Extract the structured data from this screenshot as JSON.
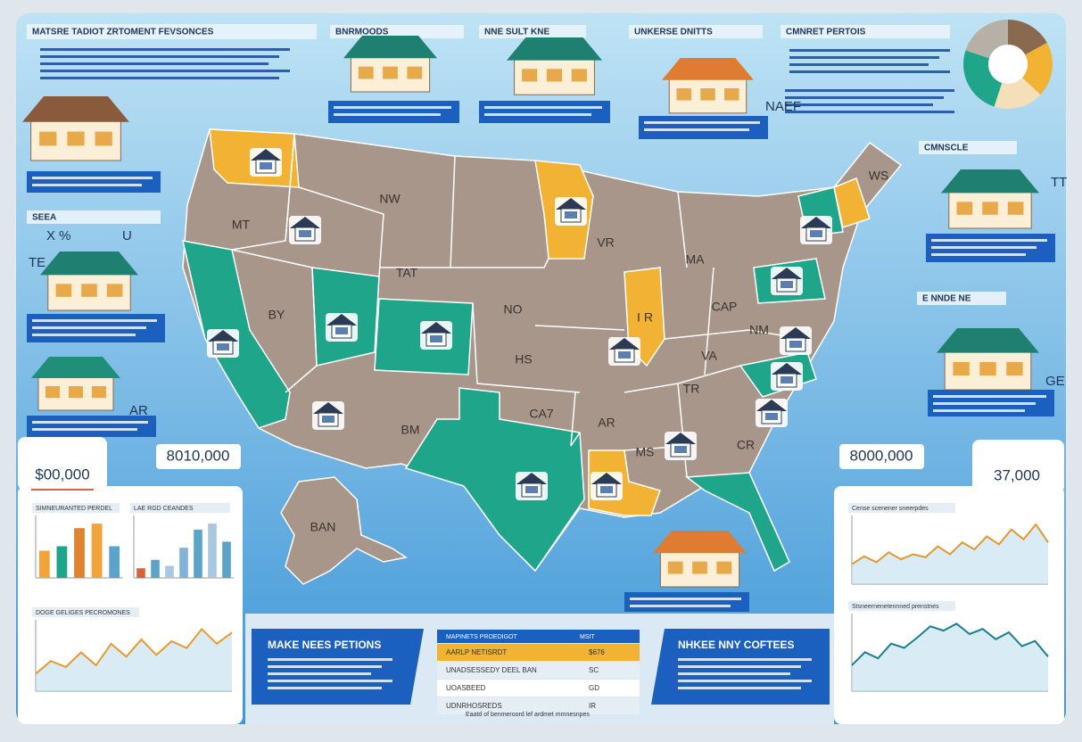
{
  "header": {
    "title": "MATSRE TADIOT ZRTOMENT FEVSONCES"
  },
  "cards": [
    {
      "title": "BNRMOODS"
    },
    {
      "title": "NNE SULT KNE"
    },
    {
      "title": "UNKERSE DNITTS"
    },
    {
      "title": "CMNRET PERTOIS"
    },
    {
      "title": "SEEA"
    },
    {
      "title": "CMNSCLE"
    },
    {
      "title": "E NNDE NE"
    }
  ],
  "side_labels": [
    "X %",
    "U",
    "TE",
    "AR",
    "NAEF",
    "TT",
    "GE"
  ],
  "map_labels": [
    "MT",
    "NW",
    "TAT",
    "BY",
    "NO",
    "HS",
    "CA7",
    "BM",
    "AR",
    "MS",
    "VR",
    "MA",
    "CAP",
    "NM",
    "VA",
    "TR",
    "CR",
    "WS",
    "I R",
    "BAN"
  ],
  "stats": [
    "$00,000",
    "8010,000",
    "8000,000",
    "37,000"
  ],
  "donut": {
    "values": [
      17,
      20,
      18,
      25,
      20
    ],
    "colors": [
      "#8a6a4f",
      "#f2b233",
      "#f4dfb8",
      "#1fa58a",
      "#b7b0a6"
    ]
  },
  "mini_charts": [
    {
      "type": "bar",
      "title": "SIMNEURANTED PERDEL",
      "values": [
        30,
        35,
        55,
        60,
        35
      ],
      "colors": [
        "#f2a33a",
        "#1fa58a",
        "#e0822f",
        "#f2a33a",
        "#5ba3c9"
      ]
    },
    {
      "type": "bar",
      "title": "LAE RGD CEANDES",
      "values": [
        8,
        15,
        10,
        25,
        40,
        45,
        30
      ],
      "colors": [
        "#d9623b",
        "#5ba3c9",
        "#a8c8e0",
        "#7fb2d6",
        "#5ba3c9",
        "#a8c8e0",
        "#5ba3c9"
      ]
    },
    {
      "type": "line",
      "title": "DOGE GELIGES PECROMONES",
      "values": [
        20,
        35,
        28,
        45,
        30,
        55,
        40,
        60,
        42,
        58,
        50,
        72,
        55,
        68
      ],
      "colors": [
        "#e89a2e"
      ]
    },
    {
      "type": "line",
      "title": "Cense scenener sneerpdes",
      "values": [
        20,
        28,
        22,
        32,
        25,
        30,
        27,
        38,
        30,
        42,
        35,
        48,
        40,
        55,
        45,
        60,
        42
      ],
      "colors": [
        "#e09a2e"
      ]
    },
    {
      "type": "line",
      "title": "Stsneernenetennned prenstnes",
      "values": [
        30,
        45,
        38,
        55,
        50,
        62,
        75,
        70,
        78,
        66,
        72,
        60,
        68,
        52,
        58,
        40
      ],
      "colors": [
        "#1b7f91"
      ]
    }
  ],
  "panels": [
    {
      "title": "MAKE NEES PETIONS"
    },
    {
      "title": "NHKEE NNY COFTEES"
    }
  ],
  "table": {
    "header": [
      "MAPINETS PROEDIGOT",
      "MSIT"
    ],
    "rows": [
      [
        "AARLP NETISRDT",
        "$676"
      ],
      [
        "UNADSESSEDY DEEL BAN",
        "SC"
      ],
      [
        "UOASBEED",
        "GD"
      ],
      [
        "UDNRHOSREDS",
        "IR"
      ]
    ],
    "footer": "Eaatd of benmeroord lef ardmet mmnesnpes"
  }
}
